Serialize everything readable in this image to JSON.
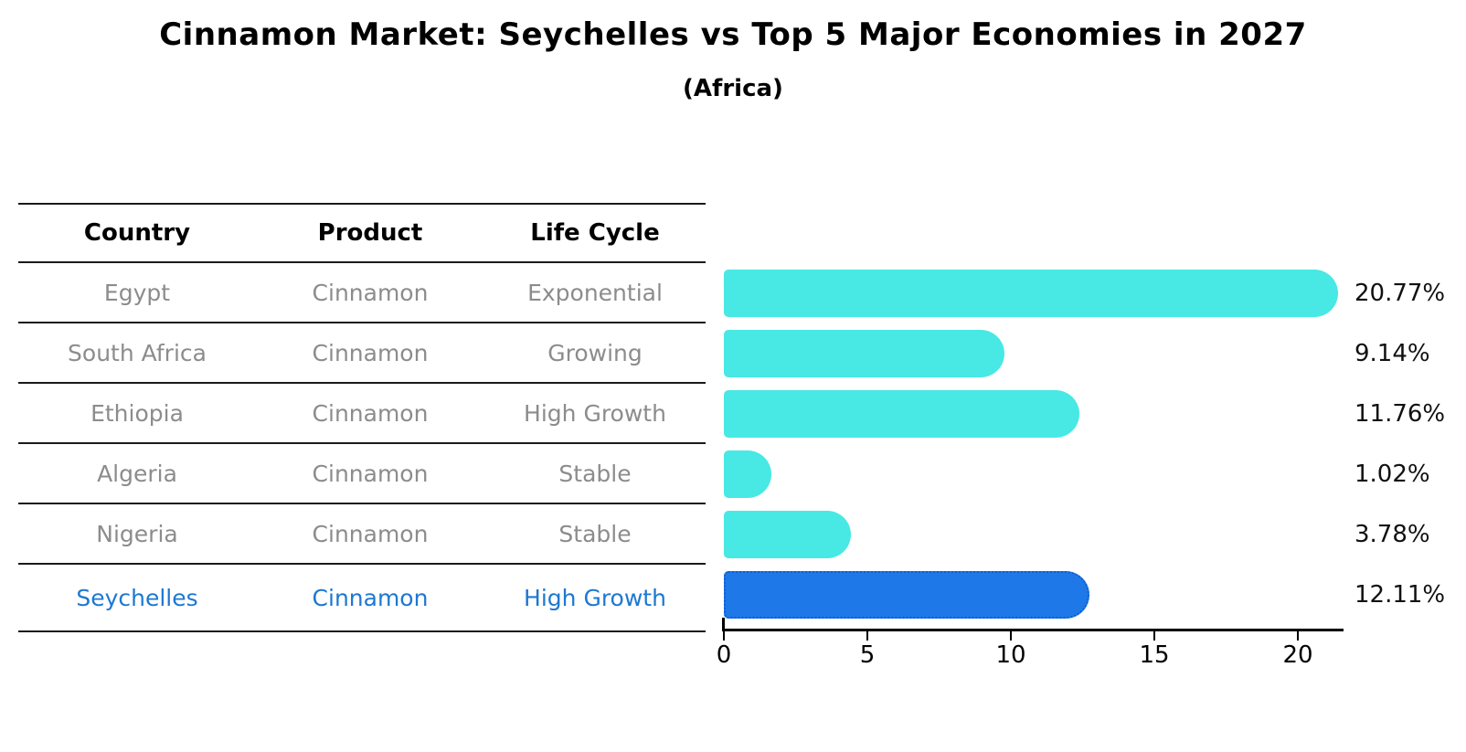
{
  "title": "Cinnamon Market: Seychelles vs Top 5 Major Economies in 2027",
  "subtitle": "(Africa)",
  "table": {
    "headers": [
      "Country",
      "Product",
      "Life Cycle"
    ],
    "rows": [
      {
        "country": "Egypt",
        "product": "Cinnamon",
        "life_cycle": "Exponential",
        "highlight": false
      },
      {
        "country": "South Africa",
        "product": "Cinnamon",
        "life_cycle": "Growing",
        "highlight": false
      },
      {
        "country": "Ethiopia",
        "product": "Cinnamon",
        "life_cycle": "High Growth",
        "highlight": false
      },
      {
        "country": "Algeria",
        "product": "Cinnamon",
        "life_cycle": "Stable",
        "highlight": false
      },
      {
        "country": "Nigeria",
        "product": "Cinnamon",
        "life_cycle": "Stable",
        "highlight": false
      },
      {
        "country": "Seychelles",
        "product": "Cinnamon",
        "life_cycle": "High Growth",
        "highlight": true
      }
    ]
  },
  "chart_data": {
    "type": "bar",
    "orientation": "horizontal",
    "title": "Cinnamon Market: Seychelles vs Top 5 Major Economies in 2027",
    "subtitle": "(Africa)",
    "categories": [
      "Egypt",
      "South Africa",
      "Ethiopia",
      "Algeria",
      "Nigeria",
      "Seychelles"
    ],
    "values": [
      20.77,
      9.14,
      11.76,
      1.02,
      3.78,
      12.11
    ],
    "value_labels": [
      "20.77%",
      "9.14%",
      "11.76%",
      "1.02%",
      "3.78%",
      "12.11%"
    ],
    "xlabel": "",
    "ylabel": "",
    "xlim": [
      0,
      21.6
    ],
    "xticks": [
      0,
      5,
      10,
      15,
      20
    ],
    "grid": false,
    "legend": false,
    "highlight_index": 5,
    "bar_color": "#48e8e4",
    "highlight_color": "#1e78e8",
    "highlight_border_color": "#0c5fd0",
    "highlight_text_color": "#1d78d2",
    "row_text_color": "#8c8c8c"
  }
}
